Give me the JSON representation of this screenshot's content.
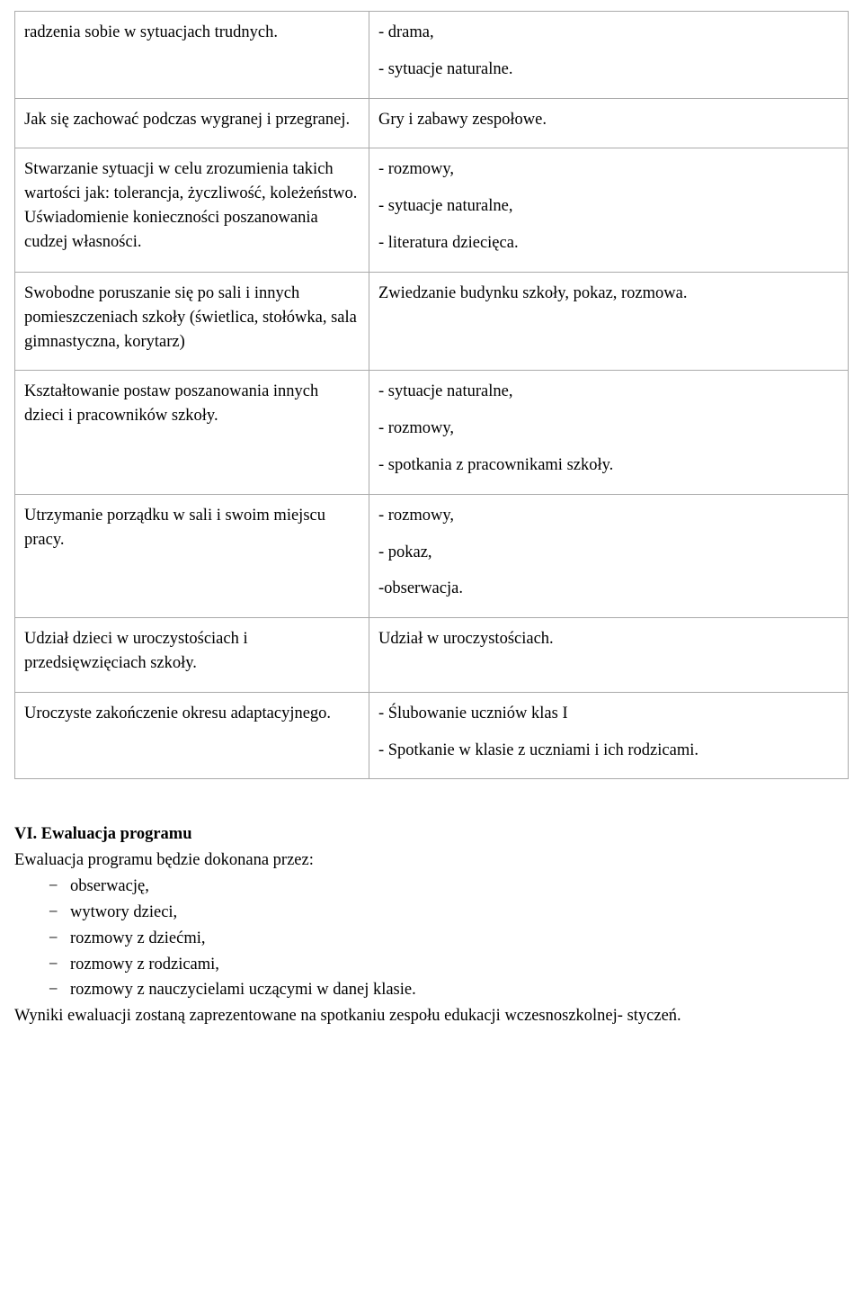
{
  "table": {
    "rows": [
      {
        "left": [
          "radzenia sobie w sytuacjach trudnych."
        ],
        "right": [
          "- drama,",
          "- sytuacje naturalne."
        ]
      },
      {
        "left": [
          "Jak się zachować podczas wygranej i przegranej."
        ],
        "right": [
          "Gry i zabawy zespołowe."
        ]
      },
      {
        "left": [
          "Stwarzanie sytuacji w celu zrozumienia takich wartości jak: tolerancja, życzliwość, koleżeństwo. Uświadomienie konieczności poszanowania cudzej własności."
        ],
        "right": [
          "- rozmowy,",
          "- sytuacje naturalne,",
          "- literatura dziecięca."
        ]
      },
      {
        "left": [
          "Swobodne poruszanie się po sali i innych pomieszczeniach szkoły (świetlica, stołówka, sala gimnastyczna, korytarz)"
        ],
        "right": [
          "Zwiedzanie budynku szkoły, pokaz, rozmowa."
        ]
      },
      {
        "left": [
          "Kształtowanie postaw poszanowania innych dzieci i pracowników szkoły."
        ],
        "right": [
          "- sytuacje naturalne,",
          "- rozmowy,",
          "- spotkania z pracownikami szkoły."
        ]
      },
      {
        "left": [
          "Utrzymanie porządku w sali i swoim miejscu pracy."
        ],
        "right": [
          "- rozmowy,",
          "- pokaz,",
          "-obserwacja."
        ]
      },
      {
        "left": [
          "Udział dzieci w uroczystościach i przedsięwzięciach szkoły."
        ],
        "right": [
          "Udział w uroczystościach."
        ]
      },
      {
        "left": [
          "Uroczyste zakończenie okresu adaptacyjnego."
        ],
        "right": [
          "- Ślubowanie uczniów klas I",
          "- Spotkanie w klasie z uczniami i ich rodzicami."
        ]
      }
    ]
  },
  "heading": "VI. Ewaluacja programu",
  "intro": "Ewaluacja programu będzie dokonana przez:",
  "bullets": [
    "obserwację,",
    "wytwory dzieci,",
    "rozmowy z dziećmi,",
    "rozmowy z rodzicami,",
    "rozmowy z nauczycielami uczącymi w danej klasie."
  ],
  "closing": "Wyniki ewaluacji zostaną zaprezentowane na spotkaniu zespołu edukacji wczesnoszkolnej- styczeń."
}
